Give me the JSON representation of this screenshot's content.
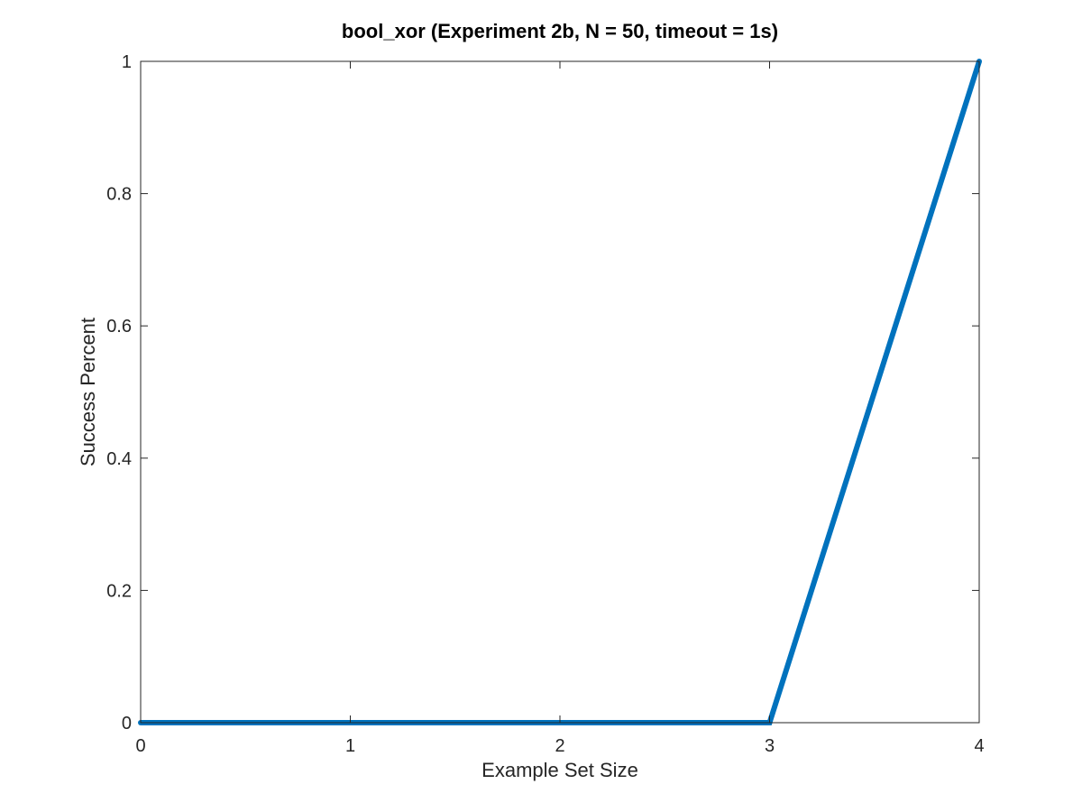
{
  "chart_data": {
    "type": "line",
    "title": "bool_xor (Experiment 2b, N = 50, timeout = 1s)",
    "xlabel": "Example Set Size",
    "ylabel": "Success Percent",
    "xlim": [
      0,
      4
    ],
    "ylim": [
      0,
      1
    ],
    "xticks": [
      0,
      1,
      2,
      3,
      4
    ],
    "xtick_labels": [
      "0",
      "1",
      "2",
      "3",
      "4"
    ],
    "yticks": [
      0,
      0.2,
      0.4,
      0.6,
      0.8,
      1
    ],
    "ytick_labels": [
      "0",
      "0.2",
      "0.4",
      "0.6",
      "0.8",
      "1"
    ],
    "grid": false,
    "legend": "none",
    "series": [
      {
        "color": "#0072bd",
        "x": [
          0,
          1,
          2,
          3,
          4
        ],
        "y": [
          0,
          0,
          0,
          0,
          1
        ]
      }
    ]
  }
}
